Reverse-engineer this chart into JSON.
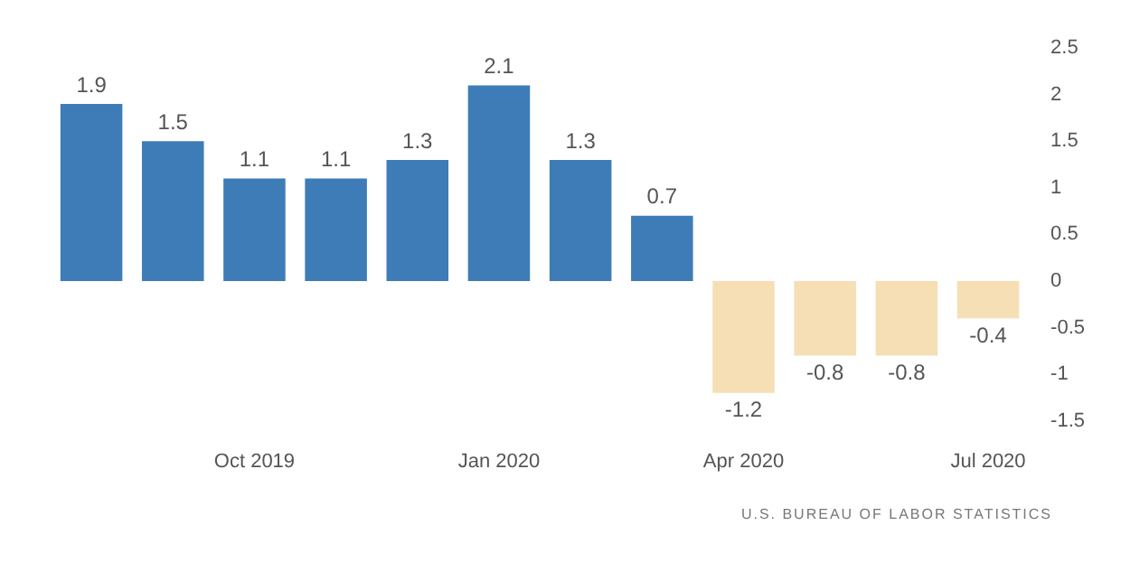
{
  "chart_data": {
    "type": "bar",
    "categories": [
      null,
      null,
      "Oct 2019",
      null,
      null,
      "Jan 2020",
      null,
      null,
      "Apr 2020",
      null,
      null,
      "Jul 2020"
    ],
    "values": [
      1.9,
      1.5,
      1.1,
      1.1,
      1.3,
      2.1,
      1.3,
      0.7,
      -1.2,
      -0.8,
      -0.8,
      -0.4
    ],
    "colors": [
      "#3e7cb8",
      "#3e7cb8",
      "#3e7cb8",
      "#3e7cb8",
      "#3e7cb8",
      "#3e7cb8",
      "#3e7cb8",
      "#3e7cb8",
      "#f6dfb5",
      "#f6dfb5",
      "#f6dfb5",
      "#f6dfb5"
    ],
    "ylim": [
      -1.5,
      2.5
    ],
    "yticks": [
      2.5,
      2,
      1.5,
      1,
      0.5,
      0,
      -0.5,
      -1,
      -1.5
    ],
    "data_labels": true,
    "annotations": [
      "U.S. BUREAU OF LABOR STATISTICS"
    ]
  }
}
